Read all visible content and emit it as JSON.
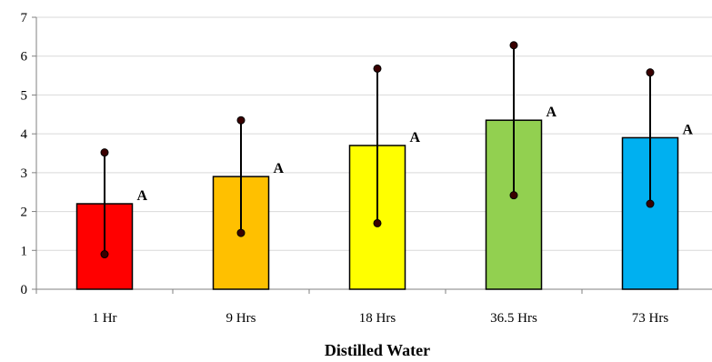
{
  "chart_data": {
    "type": "bar",
    "xlabel": "Distilled Water",
    "ylabel": "",
    "ylim": [
      0,
      7
    ],
    "yticks": [
      0,
      1,
      2,
      3,
      4,
      5,
      6,
      7
    ],
    "grid": "horizontal",
    "legend": "none",
    "categories": [
      "1 Hr",
      "9 Hrs",
      "18 Hrs",
      "36.5 Hrs",
      "73 Hrs"
    ],
    "values": [
      2.2,
      2.9,
      3.7,
      4.35,
      3.9
    ],
    "error_low": [
      0.9,
      1.45,
      1.7,
      2.42,
      2.2
    ],
    "error_high": [
      3.52,
      4.35,
      5.68,
      6.28,
      5.58
    ],
    "significance_labels": [
      "A",
      "A",
      "A",
      "A",
      "A"
    ],
    "colors": [
      "#ff0000",
      "#ffc000",
      "#ffff00",
      "#92d050",
      "#00b0f0"
    ]
  }
}
